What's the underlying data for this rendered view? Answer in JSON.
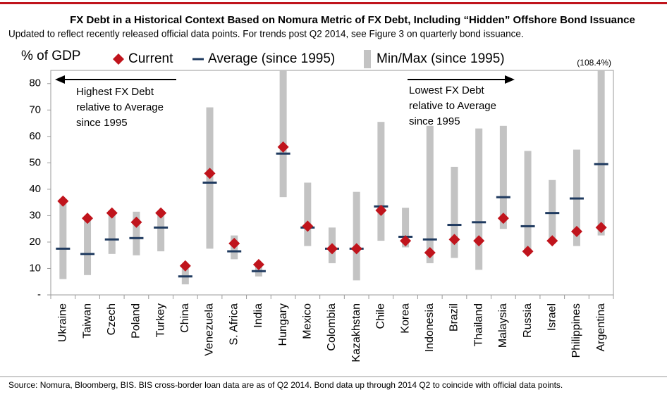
{
  "chart_data": {
    "type": "range",
    "title": "FX Debt in a Historical Context Based on Nomura Metric of FX Debt, Including “Hidden” Offshore Bond Issuance",
    "subtitle": "Updated to reflect recently released official data points. For trends post Q2 2014, see Figure 3 on quarterly bond issuance.",
    "y_label": "% of GDP",
    "source": "Source: Nomura, Bloomberg, BIS. BIS cross-border loan data are as of Q2 2014. Bond data up through 2014 Q2 to coincide with official data points.",
    "annotations": [
      {
        "lines": [
          "Highest FX Debt",
          "relative to Average",
          "since 1995"
        ]
      },
      {
        "lines": [
          "Lowest FX Debt",
          "relative to Average",
          "since 1995"
        ]
      },
      {
        "text": "(108.4%)"
      }
    ],
    "categories": [
      "Ukraine",
      "Taiwan",
      "Czech",
      "Poland",
      "Turkey",
      "China",
      "Venezuela",
      "S. Africa",
      "India",
      "Hungary",
      "Mexico",
      "Colombia",
      "Kazakhstan",
      "Chile",
      "Korea",
      "Indonesia",
      "Brazil",
      "Thailand",
      "Malaysia",
      "Russia",
      "Israel",
      "Philippines",
      "Argentina"
    ],
    "series": [
      {
        "name": "Current",
        "color": "#c0141c",
        "values": [
          35.5,
          29,
          31,
          27.5,
          31,
          11,
          46,
          19.5,
          11.5,
          56,
          26,
          17.5,
          17.5,
          32,
          20.5,
          16,
          21,
          20.5,
          29,
          16.5,
          20.5,
          24,
          25.5
        ]
      },
      {
        "name": "Average (since 1995)",
        "color": "#1f3a5f",
        "values": [
          17.5,
          15.5,
          21,
          21.5,
          25.5,
          7,
          42.5,
          16.5,
          9,
          53.5,
          25.5,
          17.5,
          17.5,
          33.5,
          22,
          21,
          26.5,
          27.5,
          37,
          26,
          31,
          36.5,
          49.5
        ]
      },
      {
        "name": "Min/Max (since 1995)",
        "color": "#c3c3c3",
        "min": [
          6,
          7.5,
          15.5,
          15,
          16.5,
          4,
          17.5,
          13.5,
          7,
          37,
          18.5,
          12,
          5.5,
          20.5,
          18,
          12,
          14,
          9.5,
          25,
          15.5,
          20.5,
          18.5,
          22.5
        ],
        "max": [
          35.5,
          29,
          31,
          31.5,
          31,
          11,
          71,
          22.5,
          11.5,
          86,
          42.5,
          25.5,
          39,
          65.5,
          33,
          64,
          48.5,
          63,
          64,
          54.5,
          43.5,
          55,
          108.4
        ]
      }
    ],
    "ylim": [
      0,
      85
    ],
    "yticks": [
      {
        "value": 0,
        "label": "-"
      },
      10,
      20,
      30,
      40,
      50,
      60,
      70,
      80
    ],
    "grid": false
  }
}
